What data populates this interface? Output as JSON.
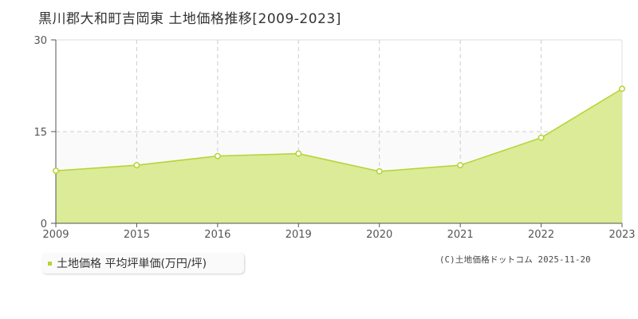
{
  "title": "黒川郡大和町吉岡東 土地価格推移[2009-2023]",
  "legend": {
    "label": "土地価格 平均坪単価(万円/坪)",
    "color": "#b5d334"
  },
  "copyright": "(C)土地価格ドットコム 2025-11-20",
  "colors": {
    "line": "#b5d334",
    "fill": "#dbeb97",
    "grid": "#cccccc",
    "axis": "#555555"
  },
  "chart_data": {
    "type": "area",
    "title": "黒川郡大和町吉岡東 土地価格推移[2009-2023]",
    "xlabel": "",
    "ylabel": "",
    "categories": [
      "2009",
      "2015",
      "2016",
      "2019",
      "2020",
      "2021",
      "2022",
      "2023"
    ],
    "series": [
      {
        "name": "土地価格 平均坪単価(万円/坪)",
        "values": [
          8.6,
          9.5,
          11.0,
          11.4,
          8.5,
          9.5,
          14.0,
          22.0
        ]
      }
    ],
    "yticks": [
      "0",
      "15",
      "30"
    ],
    "ylim": [
      0,
      30
    ],
    "grid": true,
    "legend_position": "bottom-left"
  }
}
